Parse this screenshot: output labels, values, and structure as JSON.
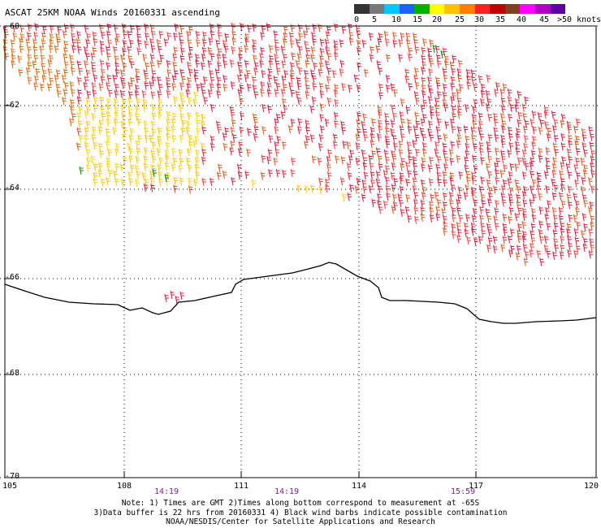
{
  "title": "ASCAT 25KM NOAA Winds 20160331 ascending",
  "legend": {
    "colors": [
      "#333333",
      "#787878",
      "#00c8ff",
      "#2060ff",
      "#00b000",
      "#ffff00",
      "#ffc000",
      "#ff8000",
      "#ff2020",
      "#c00000",
      "#804020",
      "#ff00ff",
      "#b000c0",
      "#6000a0"
    ],
    "labels": [
      "0",
      "5",
      "10",
      "15",
      "20",
      "25",
      "30",
      "35",
      "40",
      "45",
      ">50 knots"
    ]
  },
  "axes": {
    "lat_labels": [
      "-60",
      "-62",
      "-64",
      "-66",
      "-68",
      "-70"
    ],
    "lon_labels": [
      "105",
      "108",
      "111",
      "114",
      "117",
      "120"
    ]
  },
  "pass_times": [
    "14:19",
    "14:19",
    "15:59"
  ],
  "notes": [
    "Note: 1) Times are GMT 2)Times along bottom correspond to measurement at -65S",
    "3)Data buffer is 22 hrs from 20160331 4) Black wind barbs indicate possible contamination",
    "NOAA/NESDIS/Center for Satellite Applications and Research"
  ],
  "colors": {
    "grid": "#000000",
    "coastline": "#000000",
    "time_label": "#7a1fa2"
  }
}
